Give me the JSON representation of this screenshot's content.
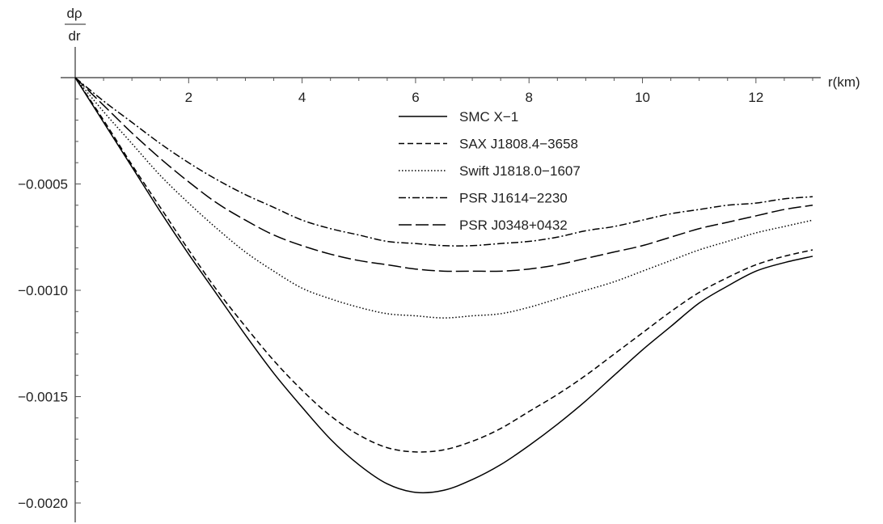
{
  "chart_data": {
    "type": "line",
    "ylabel": {
      "numerator": "dρ",
      "denominator": "dr"
    },
    "xlabel": "r(km)",
    "xlim": [
      0,
      13
    ],
    "ylim": [
      -0.00205,
      0.00015
    ],
    "x_ticks": [
      {
        "value": 2,
        "label": "2"
      },
      {
        "value": 4,
        "label": "4"
      },
      {
        "value": 6,
        "label": "6"
      },
      {
        "value": 8,
        "label": "8"
      },
      {
        "value": 10,
        "label": "10"
      },
      {
        "value": 12,
        "label": "12"
      }
    ],
    "y_ticks": [
      {
        "value": -0.0005,
        "label": "-0.0005"
      },
      {
        "value": -0.001,
        "label": "-0.0010"
      },
      {
        "value": -0.0015,
        "label": "-0.0015"
      },
      {
        "value": -0.002,
        "label": "-0.0020"
      }
    ],
    "legend_position": "center",
    "grid": false,
    "series": [
      {
        "name": "SMC X-1",
        "dash": "solid",
        "x": [
          0,
          0.5,
          1,
          1.5,
          2,
          2.5,
          3,
          3.5,
          4,
          4.5,
          5,
          5.5,
          6,
          6.5,
          7,
          7.5,
          8,
          8.5,
          9,
          9.5,
          10,
          10.5,
          11,
          11.5,
          12,
          12.5,
          13
        ],
        "values": [
          0,
          -0.00021,
          -0.00042,
          -0.00063,
          -0.00083,
          -0.00102,
          -0.00121,
          -0.00139,
          -0.00155,
          -0.0017,
          -0.00182,
          -0.00191,
          -0.00195,
          -0.00194,
          -0.00189,
          -0.00182,
          -0.00173,
          -0.00163,
          -0.00152,
          -0.0014,
          -0.00128,
          -0.00117,
          -0.00106,
          -0.00098,
          -0.00091,
          -0.00087,
          -0.00084
        ]
      },
      {
        "name": "SAX J1808.4-3658",
        "dash": "dashed",
        "x": [
          0,
          0.5,
          1,
          1.5,
          2,
          2.5,
          3,
          3.5,
          4,
          4.5,
          5,
          5.5,
          6,
          6.5,
          7,
          7.5,
          8,
          8.5,
          9,
          9.5,
          10,
          10.5,
          11,
          11.5,
          12,
          12.5,
          13
        ],
        "values": [
          0,
          -0.0002,
          -0.00041,
          -0.00061,
          -0.00081,
          -0.001,
          -0.00117,
          -0.00133,
          -0.00147,
          -0.00159,
          -0.00168,
          -0.00174,
          -0.00176,
          -0.00175,
          -0.00171,
          -0.00165,
          -0.00157,
          -0.00149,
          -0.0014,
          -0.0013,
          -0.0012,
          -0.0011,
          -0.00101,
          -0.00094,
          -0.00088,
          -0.00084,
          -0.00081
        ]
      },
      {
        "name": "Swift J1818.0-1607",
        "dash": "dotted",
        "x": [
          0,
          0.5,
          1,
          1.5,
          2,
          2.5,
          3,
          3.5,
          4,
          4.5,
          5,
          5.5,
          6,
          6.5,
          7,
          7.5,
          8,
          8.5,
          9,
          9.5,
          10,
          10.5,
          11,
          11.5,
          12,
          12.5,
          13
        ],
        "values": [
          0,
          -0.00016,
          -0.00031,
          -0.00046,
          -0.00059,
          -0.00071,
          -0.00082,
          -0.00091,
          -0.00099,
          -0.00104,
          -0.00108,
          -0.00111,
          -0.00112,
          -0.00113,
          -0.00112,
          -0.00111,
          -0.00108,
          -0.00104,
          -0.001,
          -0.00096,
          -0.00091,
          -0.00086,
          -0.00081,
          -0.00077,
          -0.00073,
          -0.0007,
          -0.00067
        ]
      },
      {
        "name": "PSR J1614-2230",
        "dash": "dashdot",
        "x": [
          0,
          0.5,
          1,
          1.5,
          2,
          2.5,
          3,
          3.5,
          4,
          4.5,
          5,
          5.5,
          6,
          6.5,
          7,
          7.5,
          8,
          8.5,
          9,
          9.5,
          10,
          10.5,
          11,
          11.5,
          12,
          12.5,
          13
        ],
        "values": [
          0,
          -0.00011,
          -0.00021,
          -0.00031,
          -0.0004,
          -0.00048,
          -0.00055,
          -0.00061,
          -0.00067,
          -0.00071,
          -0.00074,
          -0.00077,
          -0.00078,
          -0.00079,
          -0.00079,
          -0.00078,
          -0.00077,
          -0.00075,
          -0.00072,
          -0.0007,
          -0.00067,
          -0.00064,
          -0.00062,
          -0.0006,
          -0.00059,
          -0.00057,
          -0.00056
        ]
      },
      {
        "name": "PSR J0348+0432",
        "dash": "longdash",
        "x": [
          0,
          0.5,
          1,
          1.5,
          2,
          2.5,
          3,
          3.5,
          4,
          4.5,
          5,
          5.5,
          6,
          6.5,
          7,
          7.5,
          8,
          8.5,
          9,
          9.5,
          10,
          10.5,
          11,
          11.5,
          12,
          12.5,
          13
        ],
        "values": [
          0,
          -0.00013,
          -0.00026,
          -0.00038,
          -0.00049,
          -0.00059,
          -0.00067,
          -0.00074,
          -0.00079,
          -0.00083,
          -0.00086,
          -0.00088,
          -0.0009,
          -0.00091,
          -0.00091,
          -0.00091,
          -0.0009,
          -0.00088,
          -0.00085,
          -0.00082,
          -0.00079,
          -0.00075,
          -0.00071,
          -0.00068,
          -0.00065,
          -0.00062,
          -0.0006
        ]
      }
    ]
  }
}
